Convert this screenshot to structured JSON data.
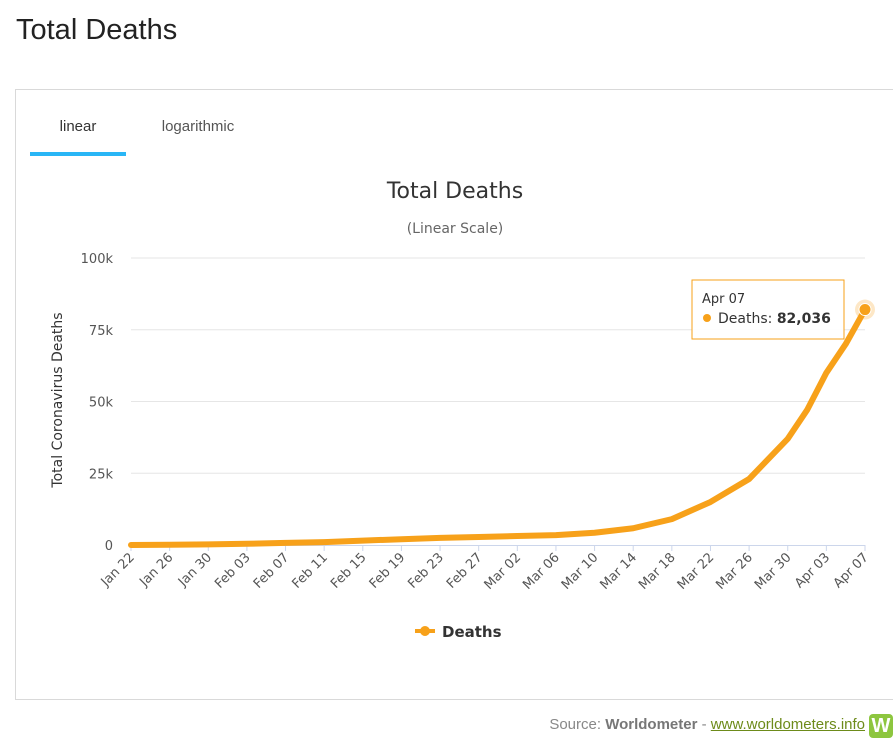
{
  "page_title": "Total Deaths",
  "tabs": [
    {
      "label": "linear",
      "active": true
    },
    {
      "label": "logarithmic",
      "active": false
    }
  ],
  "chart_data": {
    "type": "line",
    "title": "Total Deaths",
    "subtitle": "(Linear Scale)",
    "ylabel": "Total Coronavirus Deaths",
    "xlabel": "",
    "ylim": [
      0,
      100000
    ],
    "yticks": [
      {
        "value": 0,
        "label": "0"
      },
      {
        "value": 25000,
        "label": "25k"
      },
      {
        "value": 50000,
        "label": "50k"
      },
      {
        "value": 75000,
        "label": "75k"
      },
      {
        "value": 100000,
        "label": "100k"
      }
    ],
    "xtick_labels": [
      "Jan 22",
      "Jan 26",
      "Jan 30",
      "Feb 03",
      "Feb 07",
      "Feb 11",
      "Feb 15",
      "Feb 19",
      "Feb 23",
      "Feb 27",
      "Mar 02",
      "Mar 06",
      "Mar 10",
      "Mar 14",
      "Mar 18",
      "Mar 22",
      "Mar 26",
      "Mar 30",
      "Apr 03",
      "Apr 07"
    ],
    "series": [
      {
        "name": "Deaths",
        "color": "#f7a11a",
        "x": [
          "Jan 22",
          "Jan 26",
          "Jan 30",
          "Feb 03",
          "Feb 07",
          "Feb 11",
          "Feb 15",
          "Feb 19",
          "Feb 23",
          "Feb 27",
          "Mar 02",
          "Mar 06",
          "Mar 10",
          "Mar 14",
          "Mar 18",
          "Mar 22",
          "Mar 26",
          "Mar 30",
          "Apr 01",
          "Apr 03",
          "Apr 05",
          "Apr 07"
        ],
        "values": [
          17,
          106,
          213,
          426,
          719,
          1018,
          1526,
          2011,
          2462,
          2800,
          3116,
          3460,
          4267,
          5833,
          9020,
          15000,
          23000,
          37000,
          47000,
          60000,
          70000,
          82036
        ]
      }
    ],
    "grid": true,
    "legend": "bottom-center",
    "tooltip": {
      "date": "Apr 07",
      "series": "Deaths",
      "value_label": "82,036"
    }
  },
  "source": {
    "prefix": "Source: ",
    "name": "Worldometer",
    "separator": " - ",
    "link": "www.worldometers.info",
    "logo_letter": "W"
  }
}
